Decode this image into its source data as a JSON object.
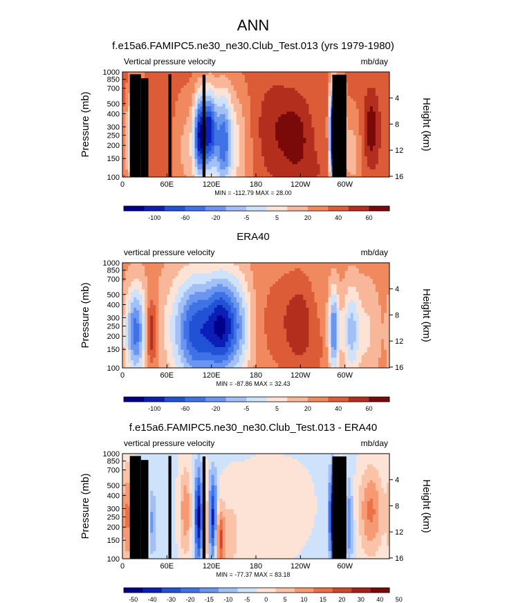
{
  "main_title": "ANN",
  "colors": {
    "scale13": [
      "#00008b",
      "#0b1fb8",
      "#2152d6",
      "#3f72e6",
      "#6a96f0",
      "#a2c0f7",
      "#cfe2fb",
      "#fde3d5",
      "#f9b799",
      "#f0895e",
      "#dc5c38",
      "#b42e1e",
      "#7a0a0a"
    ],
    "scale14": [
      "#00008b",
      "#0b1fb8",
      "#2152d6",
      "#3f72e6",
      "#6a96f0",
      "#a2c0f7",
      "#cfe2fb",
      "#fde3d5",
      "#fac3a8",
      "#f59a73",
      "#ea7046",
      "#d2452a",
      "#a7201a",
      "#7a0a0a"
    ],
    "terrain": "#000000"
  },
  "chart_data": [
    {
      "type": "heatmap",
      "title": "f.e15a6.FAMIPC5.ne30_ne30.Club_Test.013 (yrs 1979-1980)",
      "left_string": "Vertical pressure velocity",
      "right_string": "mb/day",
      "ylabel": "Pressure (mb)",
      "ylabel_right": "Height (km)",
      "x_ticks": [
        "0",
        "60E",
        "120E",
        "180",
        "120W",
        "60W"
      ],
      "y_ticks": [
        "100",
        "150",
        "200",
        "250",
        "300",
        "400",
        "500",
        "700",
        "850",
        "1000"
      ],
      "y_right_ticks": [
        "16",
        "12",
        "8",
        "4"
      ],
      "stats": "MIN = -112.79   MAX = 28.00",
      "colorbar_labels": [
        "-100",
        "-60",
        "-20",
        "-5",
        "5",
        "20",
        "40",
        "60"
      ],
      "palette": "scale13",
      "min": -112.79,
      "max": 28.0,
      "fields": [
        {
          "lon": 22,
          "p": 400,
          "a": -70,
          "w": 7,
          "h": 0.9
        },
        {
          "lon": 28,
          "p": 400,
          "a": 25,
          "w": 5,
          "h": 0.5
        },
        {
          "lon": 13,
          "p": 450,
          "a": -40,
          "w": 6,
          "h": 1.0
        },
        {
          "lon": 105,
          "p": 400,
          "a": -90,
          "w": 6,
          "h": 0.9
        },
        {
          "lon": 118,
          "p": 350,
          "a": -80,
          "w": 6,
          "h": 0.9
        },
        {
          "lon": 135,
          "p": 450,
          "a": -60,
          "w": 8,
          "h": 1.1
        },
        {
          "lon": 150,
          "p": 500,
          "a": -30,
          "w": 15,
          "h": 1.3
        },
        {
          "lon": 90,
          "p": 550,
          "a": -20,
          "w": 15,
          "h": 1.2
        },
        {
          "lon": 205,
          "p": 350,
          "a": 15,
          "w": 18,
          "h": 1.0
        },
        {
          "lon": 235,
          "p": 400,
          "a": 20,
          "w": 14,
          "h": 0.8
        },
        {
          "lon": 283,
          "p": 400,
          "a": -110,
          "w": 3,
          "h": 1.0
        },
        {
          "lon": 292,
          "p": 350,
          "a": -60,
          "w": 5,
          "h": 1.0
        },
        {
          "lon": 310,
          "p": 600,
          "a": -20,
          "w": 10,
          "h": 1.0
        },
        {
          "lon": 335,
          "p": 350,
          "a": 25,
          "w": 8,
          "h": 0.8
        },
        {
          "lon": 48,
          "p": 500,
          "a": 5,
          "w": 12,
          "h": 1.2
        },
        {
          "lon": 255,
          "p": 900,
          "a": 6,
          "w": 25,
          "h": 0.6
        }
      ],
      "terrain": [
        [
          10,
          25,
          950
        ],
        [
          25,
          35,
          870
        ],
        [
          62,
          66,
          950
        ],
        [
          108,
          112,
          940
        ],
        [
          283,
          302,
          940
        ]
      ]
    },
    {
      "type": "heatmap",
      "title": "ERA40",
      "left_string": "vertical pressure velocity",
      "right_string": "mb/day",
      "ylabel": "Pressure (mb)",
      "ylabel_right": "Height (km)",
      "x_ticks": [
        "0",
        "60E",
        "120E",
        "180",
        "120W",
        "60W"
      ],
      "y_ticks": [
        "100",
        "150",
        "200",
        "250",
        "300",
        "400",
        "500",
        "700",
        "850",
        "1000"
      ],
      "y_right_ticks": [
        "16",
        "12",
        "8",
        "4"
      ],
      "stats": "MIN = -87.86   MAX = 32.43",
      "colorbar_labels": [
        "-100",
        "-60",
        "-20",
        "-5",
        "5",
        "20",
        "40",
        "60"
      ],
      "palette": "scale13",
      "min": -87.86,
      "max": 32.43,
      "fields": [
        {
          "lon": 18,
          "p": 450,
          "a": -55,
          "w": 10,
          "h": 1.0
        },
        {
          "lon": 38,
          "p": 450,
          "a": 30,
          "w": 6,
          "h": 0.7
        },
        {
          "lon": 100,
          "p": 450,
          "a": -60,
          "w": 18,
          "h": 1.2
        },
        {
          "lon": 135,
          "p": 400,
          "a": -70,
          "w": 15,
          "h": 1.1
        },
        {
          "lon": 160,
          "p": 400,
          "a": -25,
          "w": 12,
          "h": 1.2
        },
        {
          "lon": 70,
          "p": 400,
          "a": -15,
          "w": 18,
          "h": 1.3
        },
        {
          "lon": 215,
          "p": 350,
          "a": 10,
          "w": 20,
          "h": 1.0
        },
        {
          "lon": 240,
          "p": 350,
          "a": 15,
          "w": 12,
          "h": 0.9
        },
        {
          "lon": 285,
          "p": 450,
          "a": -55,
          "w": 5,
          "h": 0.9
        },
        {
          "lon": 308,
          "p": 450,
          "a": -35,
          "w": 8,
          "h": 1.0
        },
        {
          "lon": 330,
          "p": 450,
          "a": -15,
          "w": 12,
          "h": 1.1
        },
        {
          "lon": 255,
          "p": 700,
          "a": 5,
          "w": 25,
          "h": 0.9
        }
      ],
      "terrain": []
    },
    {
      "type": "heatmap",
      "title": "f.e15a6.FAMIPC5.ne30_ne30.Club_Test.013 - ERA40",
      "left_string": "vertical pressure velocity",
      "right_string": "mb/day",
      "ylabel": "Pressure (mb)",
      "ylabel_right": "Height (km)",
      "x_ticks": [
        "0",
        "60E",
        "120E",
        "180",
        "120W",
        "60W"
      ],
      "y_ticks": [
        "100",
        "150",
        "200",
        "250",
        "300",
        "400",
        "500",
        "700",
        "850",
        "1000"
      ],
      "y_right_ticks": [
        "16",
        "12",
        "8",
        "4"
      ],
      "stats": "MIN = -77.37   MAX = 83.18",
      "colorbar_labels": [
        "-50",
        "-40",
        "-30",
        "-20",
        "-15",
        "-10",
        "-5",
        "0",
        "5",
        "10",
        "15",
        "20",
        "30",
        "40",
        "50"
      ],
      "palette": "scale14",
      "min": -77.37,
      "max": 83.18,
      "fields": [
        {
          "lon": 8,
          "p": 400,
          "a": 40,
          "w": 7,
          "h": 1.2
        },
        {
          "lon": 22,
          "p": 450,
          "a": -30,
          "w": 5,
          "h": 0.9
        },
        {
          "lon": 32,
          "p": 450,
          "a": 15,
          "w": 4,
          "h": 0.8
        },
        {
          "lon": 40,
          "p": 450,
          "a": -25,
          "w": 4,
          "h": 0.7
        },
        {
          "lon": 85,
          "p": 350,
          "a": 35,
          "w": 6,
          "h": 1.0
        },
        {
          "lon": 103,
          "p": 400,
          "a": -70,
          "w": 4,
          "h": 1.0
        },
        {
          "lon": 112,
          "p": 450,
          "a": 40,
          "w": 3,
          "h": 1.0
        },
        {
          "lon": 122,
          "p": 400,
          "a": -60,
          "w": 4,
          "h": 0.9
        },
        {
          "lon": 132,
          "p": 650,
          "a": 45,
          "w": 4,
          "h": 0.7
        },
        {
          "lon": 145,
          "p": 600,
          "a": 15,
          "w": 10,
          "h": 1.0
        },
        {
          "lon": 180,
          "p": 500,
          "a": 8,
          "w": 30,
          "h": 1.5
        },
        {
          "lon": 283,
          "p": 400,
          "a": -75,
          "w": 3,
          "h": 1.0
        },
        {
          "lon": 295,
          "p": 400,
          "a": 25,
          "w": 5,
          "h": 1.0
        },
        {
          "lon": 305,
          "p": 450,
          "a": -35,
          "w": 4,
          "h": 0.9
        },
        {
          "lon": 335,
          "p": 350,
          "a": 40,
          "w": 12,
          "h": 1.0
        },
        {
          "lon": 230,
          "p": 300,
          "a": 6,
          "w": 25,
          "h": 1.0
        }
      ],
      "terrain": [
        [
          10,
          25,
          950
        ],
        [
          25,
          35,
          870
        ],
        [
          62,
          66,
          950
        ],
        [
          108,
          112,
          940
        ],
        [
          283,
          302,
          940
        ]
      ]
    }
  ]
}
